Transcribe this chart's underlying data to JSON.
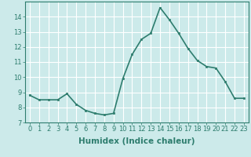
{
  "x": [
    0,
    1,
    2,
    3,
    4,
    5,
    6,
    7,
    8,
    9,
    10,
    11,
    12,
    13,
    14,
    15,
    16,
    17,
    18,
    19,
    20,
    21,
    22,
    23
  ],
  "y": [
    8.8,
    8.5,
    8.5,
    8.5,
    8.9,
    8.2,
    7.8,
    7.6,
    7.5,
    7.6,
    9.9,
    11.5,
    12.5,
    12.9,
    14.6,
    13.8,
    12.9,
    11.9,
    11.1,
    10.7,
    10.6,
    9.7,
    8.6,
    8.6
  ],
  "line_color": "#2e7d6e",
  "marker": "s",
  "marker_size": 2.0,
  "bg_color": "#cceaea",
  "grid_color": "#ffffff",
  "xlabel": "Humidex (Indice chaleur)",
  "ylim": [
    7,
    15
  ],
  "xlim": [
    -0.5,
    23.5
  ],
  "yticks": [
    7,
    8,
    9,
    10,
    11,
    12,
    13,
    14
  ],
  "xticks": [
    0,
    1,
    2,
    3,
    4,
    5,
    6,
    7,
    8,
    9,
    10,
    11,
    12,
    13,
    14,
    15,
    16,
    17,
    18,
    19,
    20,
    21,
    22,
    23
  ],
  "xlabel_fontsize": 7.5,
  "tick_fontsize": 6.0,
  "line_width": 1.2
}
